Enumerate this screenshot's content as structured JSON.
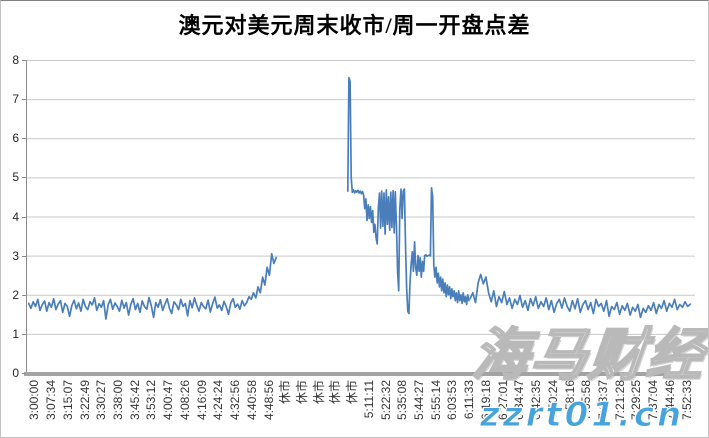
{
  "chart_data": {
    "type": "line",
    "title": "澳元对美元周末收市/周一开盘点差",
    "xlabel": "",
    "ylabel": "",
    "ylim": [
      0,
      8
    ],
    "yticks": [
      0,
      1,
      2,
      3,
      4,
      5,
      6,
      7,
      8
    ],
    "grid": true,
    "legend": "none",
    "x_tick_labels": [
      "3:00:00",
      "3:07:34",
      "3:15:07",
      "3:22:49",
      "3:30:27",
      "3:38:00",
      "3:45:42",
      "3:53:12",
      "4:00:47",
      "4:08:26",
      "4:16:09",
      "4:24:24",
      "4:32:56",
      "4:40:58",
      "4:48:56",
      "休市",
      "休市",
      "休市",
      "休市",
      "休市",
      "5:11:11",
      "5:22:32",
      "5:35:08",
      "5:44:27",
      "5:55:14",
      "6:03:53",
      "6:11:33",
      "6:19:18",
      "6:27:01",
      "6:34:47",
      "6:42:35",
      "6:50:24",
      "6:58:16",
      "7:05:58",
      "7:13:37",
      "7:21:28",
      "7:29:25",
      "7:37:04",
      "7:44:46",
      "7:52:33"
    ],
    "gridline_color": "#c9c9c9",
    "axis_color": "#8c8c8c",
    "series": [
      {
        "color": "#4a7ebb",
        "segments": [
          {
            "x_start": 0.004,
            "x_end": 0.374,
            "values": [
              1.78,
              1.65,
              1.82,
              1.7,
              1.88,
              1.6,
              1.75,
              1.84,
              1.58,
              1.8,
              1.68,
              1.9,
              1.62,
              1.76,
              1.85,
              1.55,
              1.78,
              1.7,
              1.45,
              1.72,
              1.86,
              1.64,
              1.79,
              1.58,
              1.88,
              1.7,
              1.62,
              1.82,
              1.74,
              1.92,
              1.6,
              1.77,
              1.68,
              1.85,
              1.38,
              1.75,
              1.88,
              1.63,
              1.79,
              1.7,
              1.58,
              1.86,
              1.66,
              1.8,
              1.48,
              1.76,
              1.9,
              1.62,
              1.78,
              1.55,
              1.84,
              1.7,
              1.63,
              1.93,
              1.72,
              1.42,
              1.8,
              1.68,
              1.87,
              1.6,
              1.76,
              1.9,
              1.65,
              1.52,
              1.82,
              1.74,
              1.62,
              1.88,
              1.7,
              1.78,
              1.46,
              1.85,
              1.67,
              1.92,
              1.73,
              1.58,
              1.8,
              1.7,
              1.64,
              1.86,
              1.56,
              1.77,
              1.94,
              1.66,
              1.74,
              1.6,
              1.83,
              1.7,
              1.5,
              1.79,
              1.9,
              1.68,
              1.76,
              1.63,
              1.85,
              1.72,
              1.8,
              1.95,
              1.88,
              2.05,
              1.92,
              2.2,
              2.05,
              2.45,
              2.25,
              2.7,
              2.5,
              3.05,
              2.8,
              2.95
            ]
          },
          {
            "x_start": 0.481,
            "x_end": 0.662,
            "values": [
              4.65,
              7.55,
              7.45,
              5.0,
              4.62,
              4.68,
              4.6,
              4.66,
              4.62,
              4.67,
              4.6,
              4.65,
              4.58,
              4.64,
              4.55,
              4.2,
              4.45,
              3.9,
              4.3,
              3.95,
              4.25,
              3.85,
              4.15,
              3.6,
              3.8,
              3.45,
              3.3,
              4.2,
              4.6,
              3.7,
              4.65,
              3.75,
              4.6,
              3.55,
              4.68,
              3.8,
              4.5,
              3.65,
              4.62,
              3.72,
              4.66,
              3.58,
              4.63,
              3.7,
              2.6,
              2.1,
              4.2,
              4.7,
              3.95,
              4.65,
              4.7,
              3.3,
              2.2,
              1.58,
              1.52,
              2.3,
              2.8,
              3.1,
              2.6,
              3.35,
              2.7,
              2.5,
              3.0,
              2.6,
              2.95,
              2.45,
              2.85,
              2.6,
              3.0,
              3.02,
              2.98,
              3.0,
              3.01,
              2.99,
              4.73,
              4.5,
              2.75,
              2.45,
              2.7,
              2.3,
              2.55,
              2.2,
              2.45,
              2.1,
              2.4,
              2.05,
              2.3,
              1.95,
              2.25,
              2.0,
              2.2,
              1.9,
              2.15,
              1.95,
              2.1,
              1.85,
              2.05,
              1.8,
              2.1,
              1.85,
              2.0,
              1.78,
              2.05,
              1.82,
              1.95,
              1.75,
              2.0,
              1.85
            ]
          },
          {
            "x_start": 0.664,
            "x_end": 0.993,
            "values": [
              1.9,
              2.05,
              1.8,
              2.3,
              2.52,
              2.28,
              2.45,
              2.05,
              1.82,
              2.1,
              1.7,
              1.95,
              1.8,
              2.08,
              1.75,
              1.92,
              1.65,
              1.88,
              1.75,
              1.98,
              1.68,
              1.85,
              1.6,
              1.9,
              1.72,
              1.95,
              1.65,
              1.82,
              1.7,
              1.92,
              1.62,
              1.85,
              1.55,
              1.78,
              1.88,
              1.66,
              1.92,
              1.7,
              1.58,
              1.85,
              1.64,
              1.9,
              1.55,
              1.75,
              1.85,
              1.62,
              1.8,
              1.52,
              1.88,
              1.7,
              1.78,
              1.58,
              1.85,
              1.45,
              1.7,
              1.62,
              1.8,
              1.5,
              1.72,
              1.6,
              1.78,
              1.48,
              1.68,
              1.58,
              1.75,
              1.42,
              1.65,
              1.55,
              1.72,
              1.6,
              1.8,
              1.52,
              1.75,
              1.65,
              1.85,
              1.58,
              1.78,
              1.68,
              1.88,
              1.62,
              1.75,
              1.68,
              1.82,
              1.7,
              1.76
            ]
          }
        ]
      }
    ]
  },
  "watermarks": {
    "brand": "海马财经",
    "site": "zzrt01.cn",
    "site_color": "#47a3dc"
  }
}
